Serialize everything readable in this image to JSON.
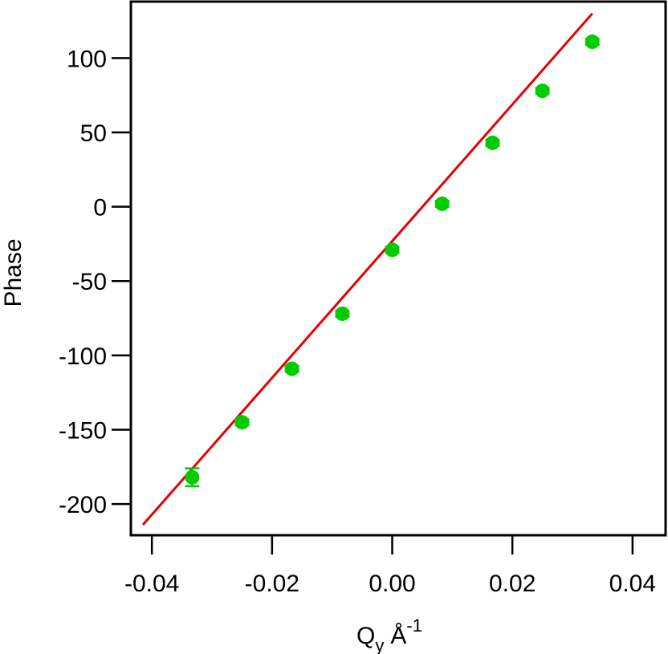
{
  "chart_data": {
    "type": "scatter",
    "title": "",
    "xlabel": "Q",
    "xlabel_subscript": "y",
    "xlabel_unit": "Å",
    "xlabel_unit_superscript": "-1",
    "ylabel": "Phase",
    "xlim": [
      -0.0435,
      0.0455
    ],
    "ylim": [
      -221,
      138
    ],
    "xticks": [
      -0.04,
      -0.02,
      0.0,
      0.02,
      0.04
    ],
    "xtick_labels": [
      "-0.04",
      "-0.02",
      "0.00",
      "0.02",
      "0.04"
    ],
    "yticks": [
      -200,
      -150,
      -100,
      -50,
      0,
      50,
      100
    ],
    "ytick_labels": [
      "-200",
      "-150",
      "-100",
      "-50",
      "0",
      "50",
      "100"
    ],
    "grid": false,
    "legend": "none",
    "series": [
      {
        "type": "scatter",
        "color": "#00cc00",
        "x": [
          -0.0333,
          -0.025,
          -0.0167,
          -0.0083,
          0.0,
          0.0083,
          0.0167,
          0.025,
          0.0333
        ],
        "y": [
          -182,
          -145,
          -109,
          -72,
          -29,
          2,
          43,
          78,
          111
        ],
        "yerr": [
          6,
          2,
          2,
          2,
          2,
          2,
          2,
          2,
          2
        ]
      },
      {
        "type": "line",
        "color": "#e60000",
        "x": [
          -0.0415,
          0.0333
        ],
        "y": [
          -214,
          130
        ]
      }
    ]
  }
}
